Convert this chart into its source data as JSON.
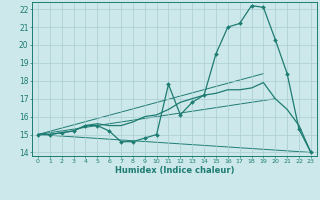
{
  "xlabel": "Humidex (Indice chaleur)",
  "background_color": "#cce8ea",
  "line_color": "#1e7c73",
  "grid_color": "#aacdd1",
  "xlim": [
    -0.5,
    23.5
  ],
  "ylim": [
    13.8,
    22.4
  ],
  "yticks": [
    14,
    15,
    16,
    17,
    18,
    19,
    20,
    21,
    22
  ],
  "xticks": [
    0,
    1,
    2,
    3,
    4,
    5,
    6,
    7,
    8,
    9,
    10,
    11,
    12,
    13,
    14,
    15,
    16,
    17,
    18,
    19,
    20,
    21,
    22,
    23
  ],
  "line1_x": [
    0,
    1,
    2,
    3,
    4,
    5,
    6,
    7,
    8,
    9,
    10,
    11,
    12,
    13,
    14,
    15,
    16,
    17,
    18,
    19,
    20,
    21,
    22,
    23
  ],
  "line1_y": [
    15,
    15,
    15.1,
    15.2,
    15.5,
    15.5,
    15.2,
    14.6,
    14.6,
    14.8,
    15.0,
    17.8,
    16.1,
    16.8,
    17.2,
    19.5,
    21.0,
    21.2,
    22.2,
    22.1,
    20.3,
    18.4,
    15.3,
    14.0
  ],
  "line2_x": [
    0,
    1,
    2,
    3,
    4,
    5,
    6,
    7,
    8,
    9,
    10,
    11,
    12,
    13,
    14,
    15,
    16,
    17,
    18,
    19,
    20,
    21,
    22,
    23
  ],
  "line2_y": [
    15,
    15,
    15.1,
    15.2,
    15.5,
    15.6,
    15.5,
    15.5,
    15.7,
    16.0,
    16.1,
    16.4,
    16.8,
    17.0,
    17.2,
    17.3,
    17.5,
    17.5,
    17.6,
    17.9,
    17.0,
    16.4,
    15.5,
    14.0
  ],
  "line3_x": [
    0,
    19
  ],
  "line3_y": [
    15,
    18.4
  ],
  "line4_x": [
    0,
    20
  ],
  "line4_y": [
    15,
    17.0
  ],
  "line5_x": [
    0,
    23
  ],
  "line5_y": [
    15,
    14.0
  ],
  "figsize": [
    3.2,
    2.0
  ],
  "dpi": 100
}
